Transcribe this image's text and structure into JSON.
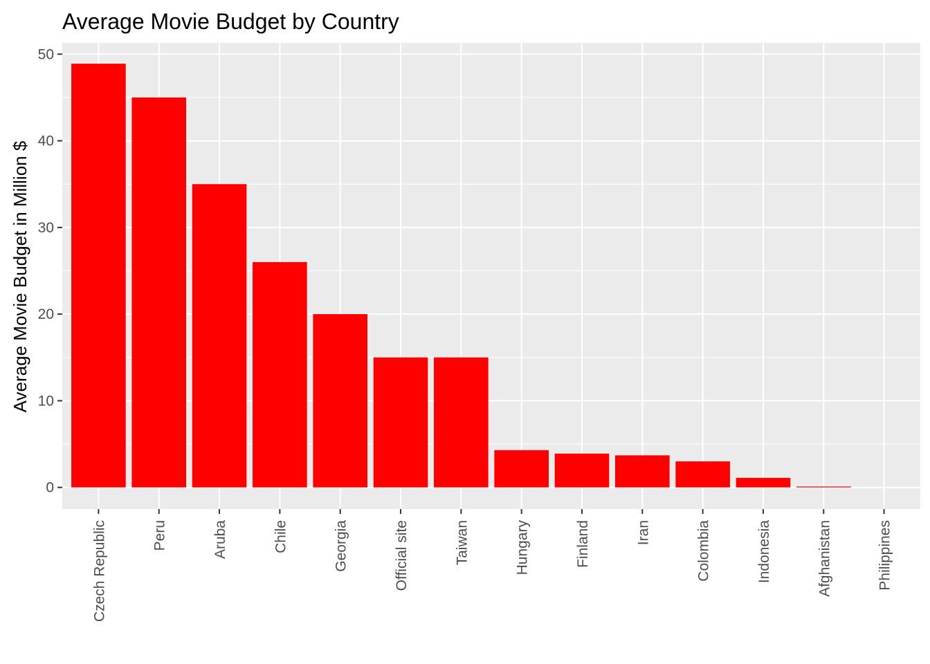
{
  "chart_data": {
    "type": "bar",
    "title": "Average Movie Budget by Country",
    "xlabel": "",
    "ylabel": "Average Movie Budget in Million $",
    "categories": [
      "Czech Republic",
      "Peru",
      "Aruba",
      "Chile",
      "Georgia",
      "Official site",
      "Taiwan",
      "Hungary",
      "Finland",
      "Iran",
      "Colombia",
      "Indonesia",
      "Afghanistan",
      "Philippines"
    ],
    "values": [
      48.9,
      45.0,
      35.0,
      26.0,
      20.0,
      15.0,
      15.0,
      4.3,
      3.9,
      3.7,
      3.0,
      1.1,
      0.1,
      0.0
    ],
    "ylim": [
      -2.5,
      51.3
    ],
    "yticks": [
      0,
      10,
      20,
      30,
      40,
      50
    ],
    "grid": true,
    "legend": "none",
    "colors": {
      "bar": "#ff0000",
      "panel": "#ebebeb",
      "grid": "#ffffff",
      "tick_text": "#4d4d4d",
      "tick_mark": "#333333"
    }
  }
}
